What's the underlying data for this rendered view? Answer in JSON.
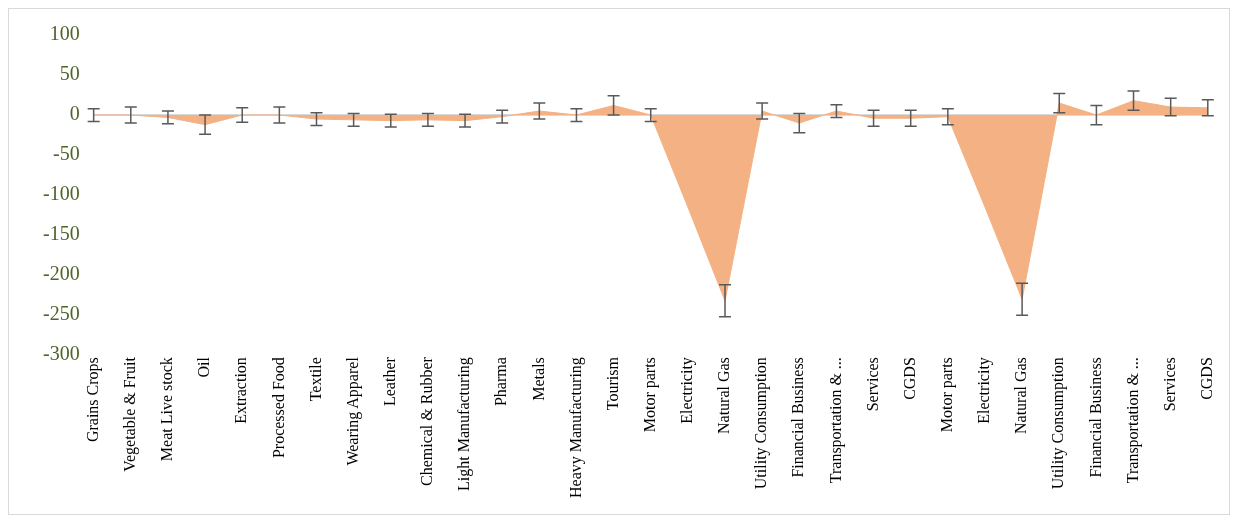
{
  "chart_data": {
    "type": "area",
    "categories": [
      "Grains Crops",
      "Vegetable & Fruit",
      "Meat Live stock",
      "Oil",
      "Extraction",
      "Processed Food",
      "Textile",
      "Wearing Apparel",
      "Leather",
      "Chemical & Rubber",
      "Light Manufacturing",
      "Pharma",
      "Metals",
      "Heavy Manufacturing",
      "Tourism",
      "Motor parts",
      "Electricity",
      "Natural Gas",
      "Utility Consumption",
      "Financial Business",
      "Transportation & ...",
      "Services",
      "CGDS",
      "Motor parts",
      "Electricity",
      "Natural Gas",
      "Utility Consumption",
      "Financial Business",
      "Transportation & ...",
      "Services",
      "CGDS"
    ],
    "series": [
      {
        "color": "#f4b183",
        "values": [
          0,
          0,
          -3,
          -12,
          0,
          0,
          -5,
          -6,
          -7,
          -6,
          -7,
          -2,
          5,
          0,
          12,
          0,
          -115,
          -232,
          5,
          -10,
          5,
          -4,
          -4,
          -2,
          -115,
          -230,
          15,
          0,
          18,
          10,
          9
        ],
        "errors": [
          8,
          10,
          8,
          12,
          9,
          10,
          8,
          8,
          8,
          8,
          8,
          8,
          10,
          8,
          12,
          8,
          null,
          20,
          10,
          12,
          8,
          10,
          10,
          10,
          null,
          20,
          12,
          12,
          12,
          11,
          10
        ]
      }
    ],
    "ylim": [
      -300,
      100
    ],
    "yticks": [
      -300,
      -250,
      -200,
      -150,
      -100,
      -50,
      0,
      50,
      100
    ],
    "ref_lines": [
      {
        "axis": "y",
        "value": 0,
        "color": "#d9d9d9"
      }
    ],
    "grid": false,
    "legend": false
  }
}
